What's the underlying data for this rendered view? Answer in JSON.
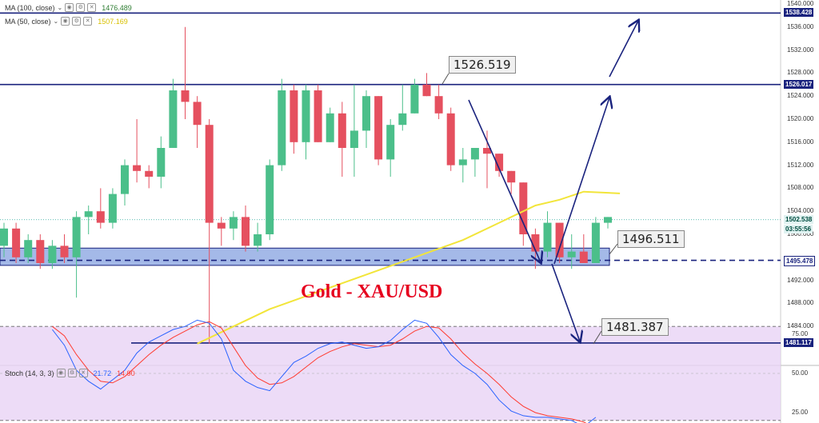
{
  "indicators": {
    "ma100": {
      "label": "MA (100, close)",
      "value": "1476.489",
      "color": "#2e7d32"
    },
    "ma50": {
      "label": "MA (50, close)",
      "value": "1507.169",
      "color": "#d8c000"
    },
    "stoch": {
      "label": "Stoch (14, 3, 3)",
      "k": "21.72",
      "d": "14.90",
      "k_color": "#2962ff",
      "d_color": "#ff3b30"
    }
  },
  "title": "Gold - XAU/USD",
  "price_axis": {
    "ticks": [
      "1540.000",
      "1536.000",
      "1532.000",
      "1528.000",
      "1524.000",
      "1520.000",
      "1516.000",
      "1512.000",
      "1508.000",
      "1504.000",
      "1500.000",
      "1492.000",
      "1488.000",
      "1484.000"
    ],
    "badges": [
      {
        "text": "1538.428",
        "bg": "#1a237e",
        "fg": "#ffffff"
      },
      {
        "text": "1526.017",
        "bg": "#1a237e",
        "fg": "#ffffff"
      },
      {
        "text": "1502.538",
        "bg": "#e0f2f1",
        "fg": "#004d40"
      },
      {
        "text": "03:55:56",
        "bg": "#e0f2f1",
        "fg": "#004d40"
      },
      {
        "text": "1495.478",
        "bg": "#ffffff",
        "fg": "#1a237e"
      },
      {
        "text": "1481.117",
        "bg": "#1a237e",
        "fg": "#ffffff"
      }
    ]
  },
  "stoch_axis": {
    "ticks": [
      "75.00",
      "50.00",
      "25.00"
    ]
  },
  "callouts": [
    {
      "text": "1526.519",
      "level": 1526.519
    },
    {
      "text": "1496.511",
      "level": 1496.511
    },
    {
      "text": "1481.387",
      "level": 1481.387
    }
  ],
  "chart_data": {
    "type": "candlestick",
    "series": [
      {
        "name": "XAU/USD",
        "ohlc": [
          [
            1498,
            1502,
            1496,
            1501
          ],
          [
            1501,
            1502,
            1495,
            1496
          ],
          [
            1496,
            1500,
            1495,
            1499
          ],
          [
            1499,
            1500,
            1494,
            1495
          ],
          [
            1495,
            1499,
            1494,
            1498
          ],
          [
            1498,
            1500,
            1495,
            1496
          ],
          [
            1496,
            1504,
            1489,
            1503
          ],
          [
            1503,
            1505,
            1500,
            1504
          ],
          [
            1504,
            1508,
            1501,
            1502
          ],
          [
            1502,
            1508,
            1501,
            1507
          ],
          [
            1507,
            1513,
            1505,
            1512
          ],
          [
            1512,
            1520,
            1509,
            1511
          ],
          [
            1511,
            1512,
            1508,
            1510
          ],
          [
            1510,
            1517,
            1508,
            1515
          ],
          [
            1515,
            1527,
            1515,
            1525
          ],
          [
            1525,
            1536,
            1520,
            1523
          ],
          [
            1523,
            1524,
            1515,
            1519
          ],
          [
            1519,
            1520,
            1481,
            1502
          ],
          [
            1502,
            1503,
            1498,
            1501
          ],
          [
            1501,
            1504,
            1499,
            1503
          ],
          [
            1503,
            1505,
            1497,
            1498
          ],
          [
            1498,
            1502,
            1497,
            1500
          ],
          [
            1500,
            1513,
            1499,
            1512
          ],
          [
            1512,
            1527,
            1511,
            1525
          ],
          [
            1525,
            1526,
            1514,
            1516
          ],
          [
            1516,
            1526,
            1513,
            1525
          ],
          [
            1525,
            1526,
            1516,
            1516
          ],
          [
            1516,
            1522,
            1516,
            1521
          ],
          [
            1521,
            1523,
            1510,
            1515
          ],
          [
            1515,
            1526,
            1510,
            1518
          ],
          [
            1518,
            1525,
            1515,
            1524
          ],
          [
            1524,
            1524,
            1512,
            1513
          ],
          [
            1513,
            1520,
            1510,
            1519
          ],
          [
            1519,
            1526,
            1518,
            1521
          ],
          [
            1521,
            1527,
            1521,
            1526
          ],
          [
            1526,
            1528,
            1524,
            1524
          ],
          [
            1524,
            1526,
            1520,
            1521
          ],
          [
            1521,
            1522,
            1511,
            1512
          ],
          [
            1512,
            1515,
            1509,
            1513
          ],
          [
            1513,
            1515,
            1510,
            1515
          ],
          [
            1515,
            1518,
            1508,
            1514
          ],
          [
            1514,
            1514,
            1510,
            1511
          ],
          [
            1511,
            1511,
            1507,
            1509
          ],
          [
            1509,
            1509,
            1498,
            1500
          ],
          [
            1500,
            1501,
            1494,
            1497
          ],
          [
            1497,
            1504,
            1496,
            1502
          ],
          [
            1502,
            1502,
            1495,
            1496
          ],
          [
            1496,
            1500,
            1494,
            1497
          ],
          [
            1497,
            1500,
            1495,
            1495
          ],
          [
            1495,
            1503,
            1495,
            1502
          ],
          [
            1502,
            1503,
            1501,
            1503
          ]
        ]
      },
      {
        "name": "MA (50, close)",
        "points": [
          [
            16,
            1481
          ],
          [
            19,
            1484
          ],
          [
            22,
            1487
          ],
          [
            26,
            1490
          ],
          [
            30,
            1493
          ],
          [
            34,
            1496
          ],
          [
            38,
            1499
          ],
          [
            41,
            1502
          ],
          [
            44,
            1505
          ],
          [
            46,
            1506
          ],
          [
            48,
            1507.4
          ],
          [
            51,
            1507.1
          ]
        ]
      },
      {
        "name": "Stoch %K",
        "values": [
          78,
          68,
          52,
          45,
          40,
          46,
          52,
          63,
          70,
          74,
          78,
          80,
          84,
          82,
          72,
          52,
          45,
          41,
          39,
          48,
          57,
          61,
          66,
          69,
          70,
          68,
          66,
          67,
          71,
          78,
          84,
          82,
          73,
          62,
          55,
          50,
          43,
          33,
          26,
          23,
          22,
          22,
          21,
          20,
          16,
          22
        ]
      },
      {
        "name": "Stoch %D",
        "values": [
          80,
          74,
          62,
          52,
          45,
          44,
          48,
          55,
          62,
          68,
          73,
          77,
          81,
          83,
          79,
          67,
          55,
          47,
          43,
          44,
          48,
          54,
          60,
          64,
          67,
          69,
          68,
          67,
          68,
          72,
          77,
          80,
          79,
          72,
          63,
          56,
          50,
          43,
          35,
          29,
          25,
          23,
          22,
          21,
          19,
          15
        ]
      }
    ],
    "ylim": [
      1478,
      1542
    ],
    "stoch_ylim": [
      0,
      100
    ],
    "lines": [
      {
        "level": 1538.428,
        "style": "solid"
      },
      {
        "level": 1526.017,
        "style": "solid"
      },
      {
        "level": 1495.478,
        "style": "dashed"
      },
      {
        "level": 1481.117,
        "style": "solid"
      }
    ],
    "zone": [
      1494.6,
      1497.6
    ],
    "grid": false
  }
}
